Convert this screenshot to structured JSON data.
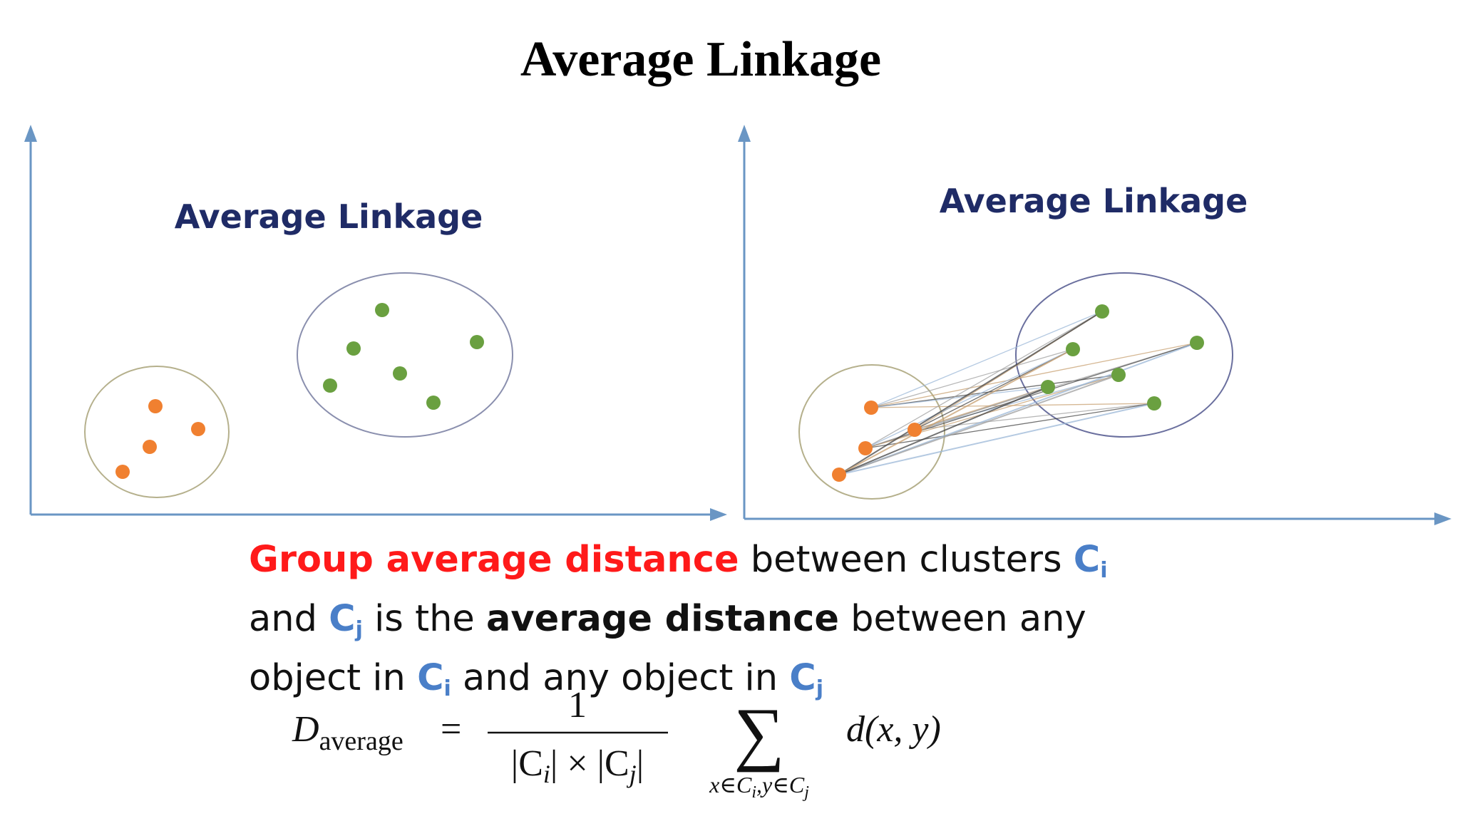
{
  "title": "Average Linkage",
  "left_panel": {
    "title": "Average Linkage"
  },
  "right_panel": {
    "title": "Average Linkage"
  },
  "description": {
    "line1": [
      "Group average distance",
      "between clusters",
      "C",
      "i"
    ],
    "line2": [
      "and",
      "C",
      "j",
      "is the",
      "average distance",
      "between any"
    ],
    "line3": [
      "object in",
      "C",
      "i",
      "and any object in",
      "C",
      "j"
    ]
  },
  "formula": {
    "lhs": "D",
    "lhs_sub": "average",
    "equals": "=",
    "numerator": "1",
    "denominator": [
      "|C",
      "i",
      "| × |C",
      "j",
      "|"
    ],
    "sum": "∑",
    "sum_sub": [
      "x∈C",
      "i",
      ",y∈C",
      "j"
    ],
    "term": "d(x, y)"
  }
}
